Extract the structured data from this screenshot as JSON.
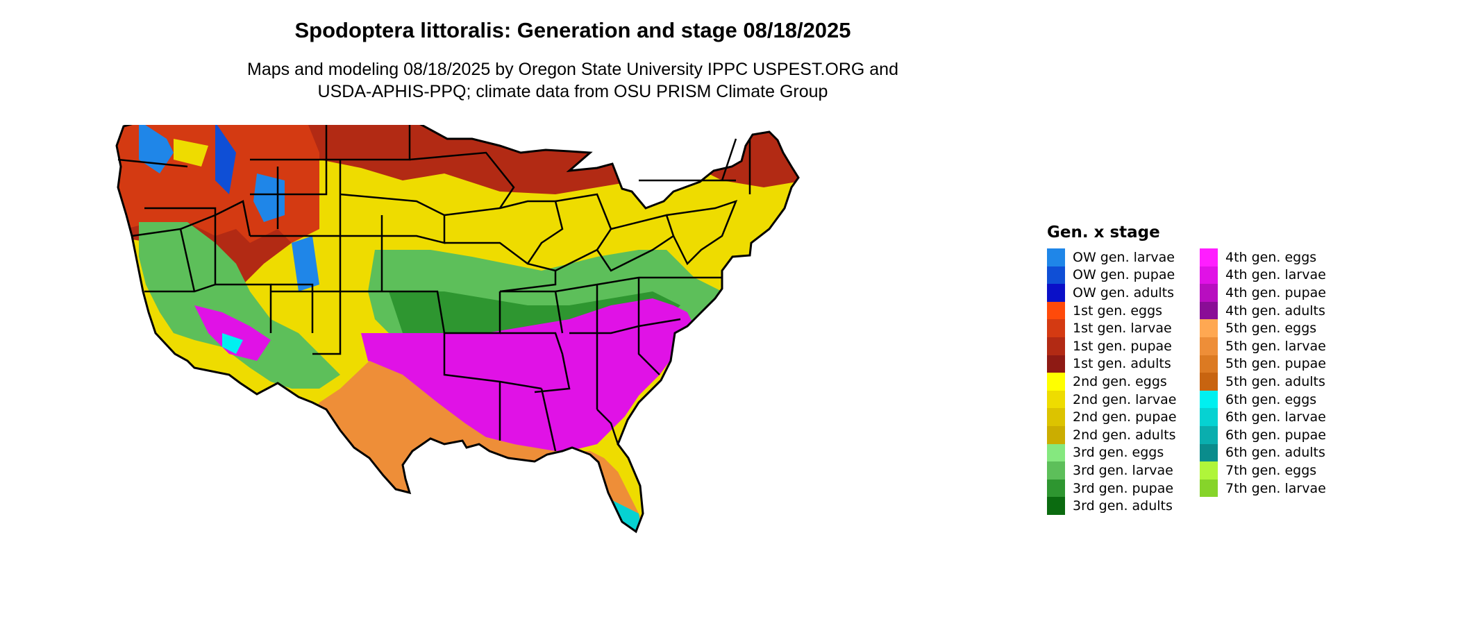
{
  "title": "Spodoptera littoralis: Generation and stage 08/18/2025",
  "subtitle_line1": "Maps and modeling 08/18/2025 by Oregon State University IPPC USPEST.ORG and",
  "subtitle_line2": "USDA-APHIS-PPQ; climate data from OSU PRISM Climate Group",
  "legend": {
    "title": "Gen. x stage",
    "column1": [
      {
        "label": "OW gen. larvae",
        "color": "#1f86e8"
      },
      {
        "label": "OW gen. pupae",
        "color": "#0f4fd6"
      },
      {
        "label": "OW gen. adults",
        "color": "#0a10c8"
      },
      {
        "label": "1st gen. eggs",
        "color": "#ff4a0a"
      },
      {
        "label": "1st gen. larvae",
        "color": "#d43a12"
      },
      {
        "label": "1st gen. pupae",
        "color": "#b22a14"
      },
      {
        "label": "1st gen. adults",
        "color": "#8e1a14"
      },
      {
        "label": "2nd gen. eggs",
        "color": "#ffff00"
      },
      {
        "label": "2nd gen. larvae",
        "color": "#eedc00"
      },
      {
        "label": "2nd gen. pupae",
        "color": "#dcc300"
      },
      {
        "label": "2nd gen. adults",
        "color": "#cbad00"
      },
      {
        "label": "3rd gen. eggs",
        "color": "#85e87f"
      },
      {
        "label": "3rd gen. larvae",
        "color": "#5dbf5a"
      },
      {
        "label": "3rd gen. pupae",
        "color": "#2e9630"
      },
      {
        "label": "3rd gen. adults",
        "color": "#0b6b10"
      }
    ],
    "column2": [
      {
        "label": "4th gen. eggs",
        "color": "#ff1eff"
      },
      {
        "label": "4th gen. larvae",
        "color": "#e012e6"
      },
      {
        "label": "4th gen. pupae",
        "color": "#b80ec0"
      },
      {
        "label": "4th gen. adults",
        "color": "#8a0d96"
      },
      {
        "label": "5th gen. eggs",
        "color": "#ffa852"
      },
      {
        "label": "5th gen. larvae",
        "color": "#ee8e38"
      },
      {
        "label": "5th gen. pupae",
        "color": "#dc7a22"
      },
      {
        "label": "5th gen. adults",
        "color": "#c86410"
      },
      {
        "label": "6th gen. eggs",
        "color": "#00f0f0"
      },
      {
        "label": "6th gen. larvae",
        "color": "#06d2d2"
      },
      {
        "label": "6th gen. pupae",
        "color": "#0aaeae"
      },
      {
        "label": "6th gen. adults",
        "color": "#0a8c8c"
      },
      {
        "label": "7th gen. eggs",
        "color": "#b0f53a"
      },
      {
        "label": "7th gen. larvae",
        "color": "#86d42a"
      }
    ]
  }
}
